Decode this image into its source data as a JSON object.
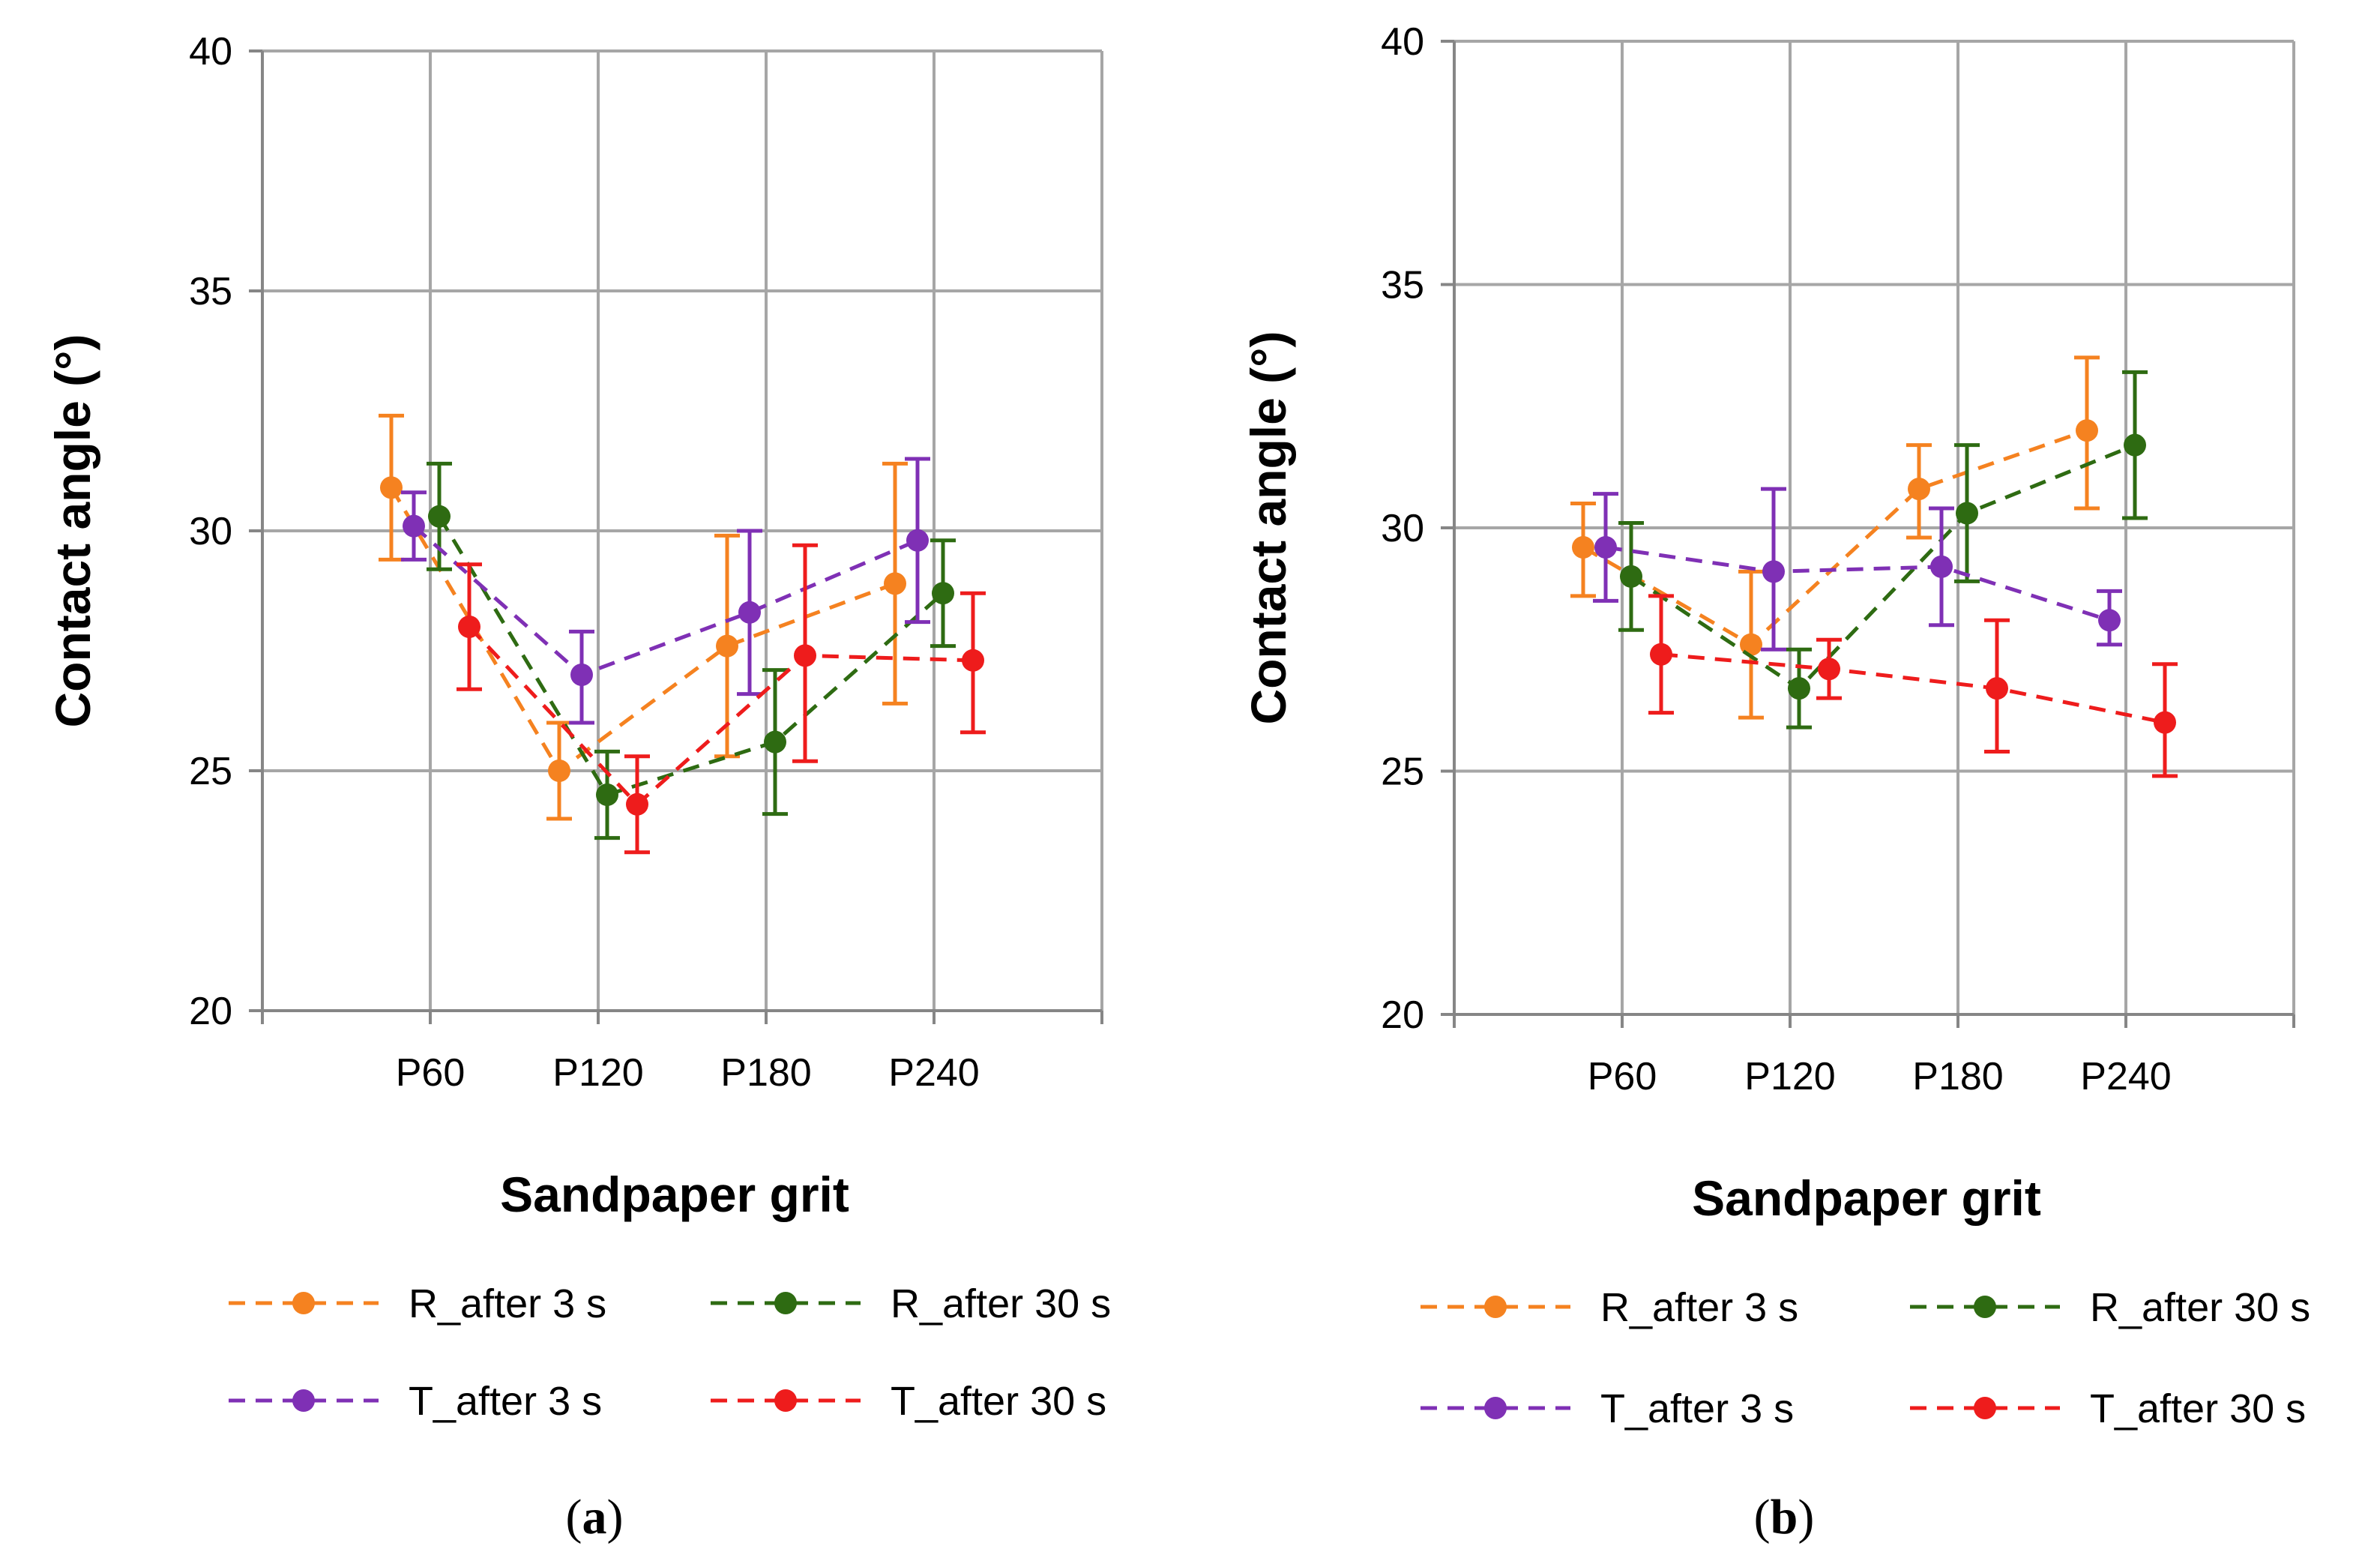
{
  "chart_data": [
    {
      "type": "line",
      "panel_label": "(a)",
      "xlabel": "Sandpaper grit",
      "ylabel": "Contact angle (°)",
      "ylim": [
        20,
        40
      ],
      "yticks": [
        20,
        25,
        30,
        35,
        40
      ],
      "categories": [
        "P60",
        "P120",
        "P180",
        "P240"
      ],
      "legend_position": "bottom",
      "grid": true,
      "series": [
        {
          "name": "R_after 3 s",
          "color": "#f58220",
          "values": [
            30.9,
            25.0,
            27.6,
            28.9
          ],
          "err_low": [
            29.4,
            24.0,
            25.3,
            26.4
          ],
          "err_high": [
            32.4,
            26.0,
            29.9,
            31.4
          ]
        },
        {
          "name": "R_after 30 s",
          "color": "#2e6b12",
          "values": [
            30.3,
            24.5,
            25.6,
            28.7
          ],
          "err_low": [
            29.2,
            23.6,
            24.1,
            27.6
          ],
          "err_high": [
            31.4,
            25.4,
            27.1,
            29.8
          ]
        },
        {
          "name": "T_after 3 s",
          "color": "#7f30b5",
          "values": [
            30.1,
            27.0,
            28.3,
            29.8
          ],
          "err_low": [
            29.4,
            26.0,
            26.6,
            28.1
          ],
          "err_high": [
            30.8,
            27.9,
            30.0,
            31.5
          ]
        },
        {
          "name": "T_after 30 s",
          "color": "#ee1c1c",
          "values": [
            28.0,
            24.3,
            27.4,
            27.3
          ],
          "err_low": [
            26.7,
            23.3,
            25.2,
            25.8
          ],
          "err_high": [
            29.3,
            25.3,
            29.7,
            28.7
          ]
        }
      ]
    },
    {
      "type": "line",
      "panel_label": "(b)",
      "xlabel": "Sandpaper grit",
      "ylabel": "Contact angle (°)",
      "ylim": [
        20,
        40
      ],
      "yticks": [
        20,
        25,
        30,
        35,
        40
      ],
      "categories": [
        "P60",
        "P120",
        "P180",
        "P240"
      ],
      "legend_position": "bottom",
      "grid": true,
      "series": [
        {
          "name": "R_after 3 s",
          "color": "#f58220",
          "values": [
            29.6,
            27.6,
            30.8,
            32.0
          ],
          "err_low": [
            28.6,
            26.1,
            29.8,
            30.4
          ],
          "err_high": [
            30.5,
            29.1,
            31.7,
            33.5
          ]
        },
        {
          "name": "R_after 30 s",
          "color": "#2e6b12",
          "values": [
            29.0,
            26.7,
            30.3,
            31.7
          ],
          "err_low": [
            27.9,
            25.9,
            28.9,
            30.2
          ],
          "err_high": [
            30.1,
            27.5,
            31.7,
            33.2
          ]
        },
        {
          "name": "T_after 3 s",
          "color": "#7f30b5",
          "values": [
            29.6,
            29.1,
            29.2,
            28.1
          ],
          "err_low": [
            28.5,
            27.5,
            28.0,
            27.6
          ],
          "err_high": [
            30.7,
            30.8,
            30.4,
            28.7
          ]
        },
        {
          "name": "T_after 30 s",
          "color": "#ee1c1c",
          "values": [
            27.4,
            27.1,
            26.7,
            26.0
          ],
          "err_low": [
            26.2,
            26.5,
            25.4,
            24.9
          ],
          "err_high": [
            28.6,
            27.7,
            28.1,
            27.2
          ]
        }
      ]
    }
  ]
}
